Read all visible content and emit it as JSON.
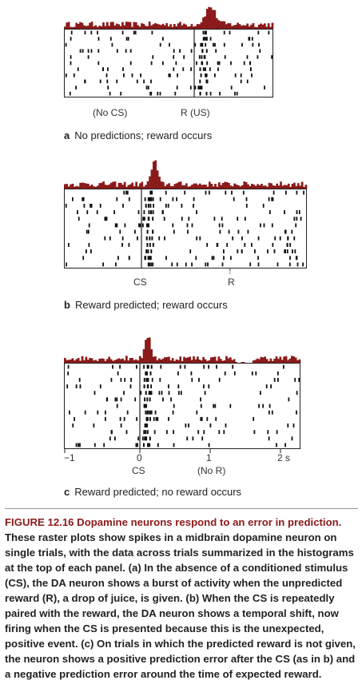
{
  "panels": [
    {
      "id": "a",
      "letter": "a",
      "caption": "No predictions; reward occurs",
      "labels": [
        "(No CS)",
        "R (US)"
      ],
      "event_lines": [
        "R"
      ]
    },
    {
      "id": "b",
      "letter": "b",
      "caption": "Reward predicted; reward occurs",
      "labels": [
        "CS",
        "R"
      ],
      "event_lines": [
        "CS"
      ]
    },
    {
      "id": "c",
      "letter": "c",
      "caption": "Reward predicted; no reward occurs",
      "labels": [
        "CS",
        "(No R)"
      ],
      "event_lines": [
        "CS"
      ],
      "axis_ticks": [
        "−1",
        "0",
        "1",
        "2 s"
      ]
    }
  ],
  "colors": {
    "histogram": "#8b1a1a",
    "spikes": "#111111"
  },
  "figure": {
    "title": "FIGURE 12.16",
    "heading": "Dopamine neurons respond to an error in prediction.",
    "body": "These raster plots show spikes in a midbrain dopamine neuron on single trials, with the data across trials summarized in the histograms at the top of each panel. (a) In the absence of a conditioned stimulus (CS), the DA neuron shows a burst of activity when the unpredicted reward (R), a drop of juice, is given. (b) When the CS is repeatedly paired with the reward, the DA neuron shows a temporal shift, now firing when the CS is presented because this is the unexpected, positive event. (c) On trials in which the predicted reward is not given, the neuron shows a positive prediction error after the CS (as in b) and a negative prediction error around the time of expected reward."
  }
}
